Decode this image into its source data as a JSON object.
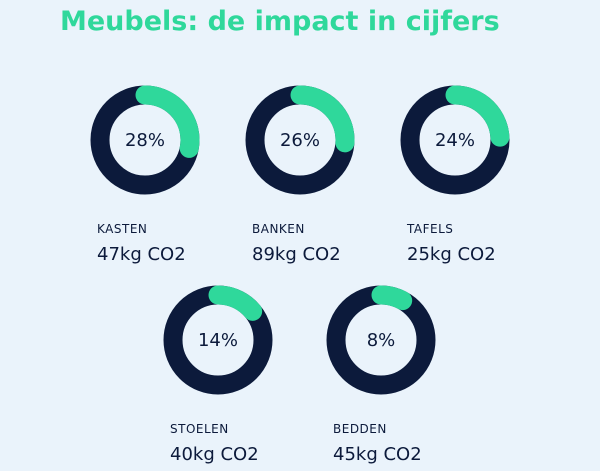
{
  "chart_data": {
    "type": "donut",
    "title": "Meubels: de impact in cijfers",
    "categories": [
      "KASTEN",
      "BANKEN",
      "TAFELS",
      "STOELEN",
      "BEDDEN"
    ],
    "values": [
      28,
      26,
      24,
      14,
      8
    ],
    "value_labels": [
      "28%",
      "26%",
      "24%",
      "14%",
      "8%"
    ],
    "annotations": [
      "47kg CO2",
      "89kg CO2",
      "25kg CO2",
      "40kg CO2",
      "45kg CO2"
    ],
    "color": "#2fd89b",
    "track_color": "#0c1a3b"
  }
}
